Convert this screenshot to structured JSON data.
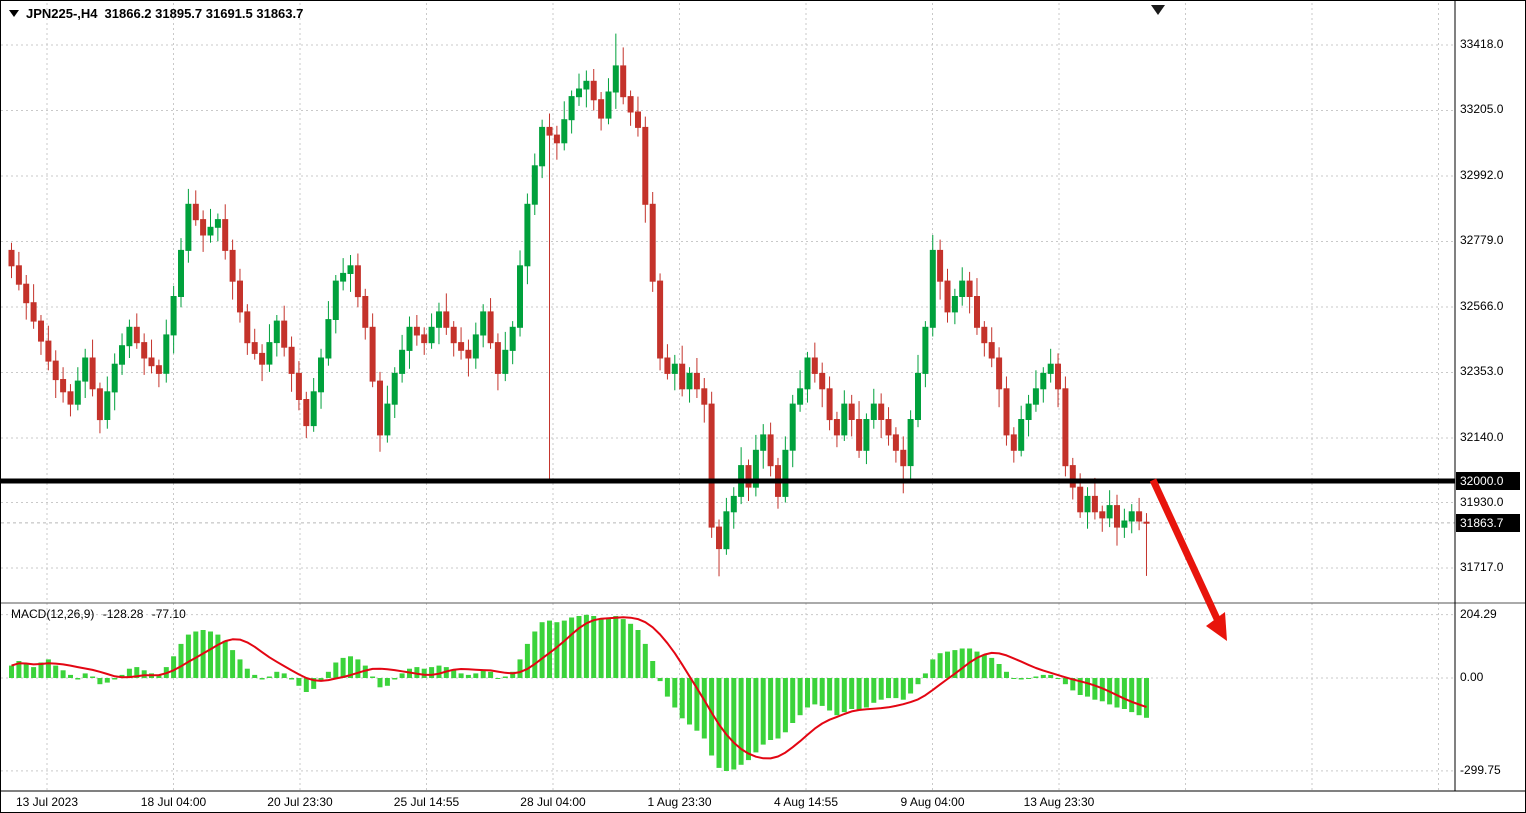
{
  "header": {
    "symbol": "JPN225-,H4",
    "ohlc": "31866.2 31895.7 31691.5 31863.7"
  },
  "price_axis": {
    "labels": [
      "33418.0",
      "33205.0",
      "32992.0",
      "32779.0",
      "32566.0",
      "32353.0",
      "32140.0",
      "31930.0",
      "31717.0"
    ],
    "hline_badge": "32000.0",
    "price_badge": "31863.7"
  },
  "macd_panel": {
    "label": "MACD(12,26,9)",
    "macd_value": "-128.28",
    "signal_value": "-77.10",
    "axis_labels": [
      "204.29",
      "0.00",
      "-299.75"
    ]
  },
  "time_axis": {
    "labels": [
      "13 Jul 2023",
      "18 Jul 04:00",
      "20 Jul 23:30",
      "25 Jul 14:55",
      "28 Jul 04:00",
      "1 Aug 23:30",
      "4 Aug 14:55",
      "9 Aug 04:00",
      "13 Aug 23:30"
    ]
  },
  "colors": {
    "background": "#ffffff",
    "grid": "#c9c9c9",
    "bull": "#00a13c",
    "bear": "#c4332b",
    "macd_histogram": "#3bd33b",
    "macd_signal": "#e30613",
    "support_line": "#000000",
    "arrow": "#e8140c",
    "badge_bg": "#000000",
    "badge_text": "#ffffff",
    "bid_line": "#b8b8b8"
  },
  "chart_data": {
    "type": "candlestick",
    "symbol": "JPN225-",
    "timeframe": "H4",
    "last_bar": {
      "open": 31866.2,
      "high": 31895.7,
      "low": 31691.5,
      "close": 31863.7
    },
    "price_gridlines": [
      33418,
      33205,
      32992,
      32779,
      32566,
      32353,
      32140,
      31930,
      31717
    ],
    "horizontal_line": 32000.0,
    "current_price": 31863.7,
    "macd_axis": [
      204.29,
      0,
      -299.75
    ],
    "macd_current": {
      "macd": -128.28,
      "signal": -77.1
    },
    "candles": [
      [
        32750,
        32775,
        32660,
        32700
      ],
      [
        32700,
        32745,
        32620,
        32640
      ],
      [
        32640,
        32670,
        32525,
        32580
      ],
      [
        32580,
        32640,
        32495,
        32520
      ],
      [
        32520,
        32540,
        32410,
        32455
      ],
      [
        32455,
        32505,
        32360,
        32390
      ],
      [
        32390,
        32425,
        32270,
        32330
      ],
      [
        32330,
        32370,
        32255,
        32290
      ],
      [
        32290,
        32315,
        32210,
        32250
      ],
      [
        32250,
        32370,
        32230,
        32325
      ],
      [
        32325,
        32430,
        32270,
        32400
      ],
      [
        32400,
        32460,
        32275,
        32300
      ],
      [
        32300,
        32320,
        32155,
        32200
      ],
      [
        32200,
        32340,
        32170,
        32290
      ],
      [
        32290,
        32415,
        32230,
        32380
      ],
      [
        32380,
        32480,
        32345,
        32440
      ],
      [
        32440,
        32525,
        32400,
        32500
      ],
      [
        32500,
        32545,
        32430,
        32450
      ],
      [
        32450,
        32480,
        32345,
        32400
      ],
      [
        32400,
        32460,
        32350,
        32375
      ],
      [
        32375,
        32395,
        32305,
        32350
      ],
      [
        32350,
        32525,
        32320,
        32475
      ],
      [
        32475,
        32635,
        32415,
        32600
      ],
      [
        32600,
        32790,
        32565,
        32750
      ],
      [
        32750,
        32950,
        32710,
        32900
      ],
      [
        32900,
        32945,
        32830,
        32850
      ],
      [
        32850,
        32880,
        32745,
        32800
      ],
      [
        32800,
        32885,
        32775,
        32825
      ],
      [
        32825,
        32870,
        32780,
        32850
      ],
      [
        32850,
        32900,
        32720,
        32750
      ],
      [
        32750,
        32785,
        32590,
        32650
      ],
      [
        32650,
        32690,
        32515,
        32550
      ],
      [
        32550,
        32575,
        32410,
        32450
      ],
      [
        32450,
        32495,
        32395,
        32415
      ],
      [
        32415,
        32445,
        32325,
        32380
      ],
      [
        32380,
        32510,
        32355,
        32450
      ],
      [
        32450,
        32540,
        32405,
        32520
      ],
      [
        32520,
        32570,
        32405,
        32435
      ],
      [
        32435,
        32470,
        32290,
        32350
      ],
      [
        32350,
        32390,
        32230,
        32265
      ],
      [
        32265,
        32290,
        32140,
        32180
      ],
      [
        32180,
        32335,
        32160,
        32290
      ],
      [
        32290,
        32430,
        32235,
        32400
      ],
      [
        32400,
        32585,
        32375,
        32525
      ],
      [
        32525,
        32670,
        32480,
        32650
      ],
      [
        32650,
        32725,
        32620,
        32675
      ],
      [
        32675,
        32735,
        32615,
        32700
      ],
      [
        32700,
        32740,
        32565,
        32600
      ],
      [
        32600,
        32625,
        32460,
        32500
      ],
      [
        32500,
        32545,
        32305,
        32325
      ],
      [
        32325,
        32355,
        32095,
        32150
      ],
      [
        32150,
        32310,
        32125,
        32250
      ],
      [
        32250,
        32370,
        32205,
        32350
      ],
      [
        32350,
        32475,
        32320,
        32425
      ],
      [
        32425,
        32535,
        32365,
        32500
      ],
      [
        32500,
        32540,
        32440,
        32475
      ],
      [
        32475,
        32500,
        32410,
        32450
      ],
      [
        32450,
        32545,
        32430,
        32500
      ],
      [
        32500,
        32580,
        32445,
        32550
      ],
      [
        32550,
        32610,
        32475,
        32500
      ],
      [
        32500,
        32520,
        32405,
        32450
      ],
      [
        32450,
        32500,
        32395,
        32425
      ],
      [
        32425,
        32460,
        32340,
        32400
      ],
      [
        32400,
        32515,
        32365,
        32475
      ],
      [
        32475,
        32575,
        32435,
        32550
      ],
      [
        32550,
        32595,
        32430,
        32450
      ],
      [
        32450,
        32480,
        32295,
        32350
      ],
      [
        32350,
        32485,
        32325,
        32425
      ],
      [
        32425,
        32520,
        32380,
        32500
      ],
      [
        32500,
        32750,
        32470,
        32700
      ],
      [
        32700,
        32935,
        32640,
        32900
      ],
      [
        32900,
        33065,
        32865,
        33025
      ],
      [
        33025,
        33175,
        32985,
        33150
      ],
      [
        33150,
        33195,
        32005,
        33125
      ],
      [
        33125,
        33155,
        33045,
        33100
      ],
      [
        33100,
        33235,
        33075,
        33175
      ],
      [
        33175,
        33270,
        33130,
        33250
      ],
      [
        33250,
        33325,
        33220,
        33275
      ],
      [
        33275,
        33335,
        33215,
        33300
      ],
      [
        33300,
        33340,
        33205,
        33240
      ],
      [
        33240,
        33265,
        33140,
        33180
      ],
      [
        33180,
        33310,
        33160,
        33265
      ],
      [
        33265,
        33455,
        33210,
        33350
      ],
      [
        33350,
        33410,
        33225,
        33250
      ],
      [
        33250,
        33270,
        33155,
        33200
      ],
      [
        33200,
        33250,
        33120,
        33150
      ],
      [
        33150,
        33185,
        32840,
        32900
      ],
      [
        32900,
        32940,
        32615,
        32650
      ],
      [
        32650,
        32675,
        32360,
        32400
      ],
      [
        32400,
        32445,
        32330,
        32350
      ],
      [
        32350,
        32410,
        32295,
        32380
      ],
      [
        32380,
        32440,
        32275,
        32300
      ],
      [
        32300,
        32370,
        32255,
        32350
      ],
      [
        32350,
        32400,
        32270,
        32300
      ],
      [
        32300,
        32335,
        32190,
        32250
      ],
      [
        32250,
        32290,
        31815,
        31850
      ],
      [
        31850,
        31875,
        31690,
        31780
      ],
      [
        31780,
        31945,
        31760,
        31900
      ],
      [
        31900,
        31980,
        31845,
        31950
      ],
      [
        31950,
        32110,
        31925,
        32050
      ],
      [
        32050,
        32070,
        31935,
        31980
      ],
      [
        31980,
        32150,
        31950,
        32100
      ],
      [
        32100,
        32185,
        32040,
        32150
      ],
      [
        32150,
        32190,
        32015,
        32050
      ],
      [
        32050,
        32075,
        31910,
        31950
      ],
      [
        31950,
        32145,
        31930,
        32100
      ],
      [
        32100,
        32280,
        32045,
        32250
      ],
      [
        32250,
        32360,
        32225,
        32300
      ],
      [
        32300,
        32420,
        32255,
        32400
      ],
      [
        32400,
        32450,
        32320,
        32350
      ],
      [
        32350,
        32385,
        32240,
        32300
      ],
      [
        32300,
        32340,
        32165,
        32200
      ],
      [
        32200,
        32225,
        32110,
        32150
      ],
      [
        32150,
        32295,
        32130,
        32250
      ],
      [
        32250,
        32280,
        32145,
        32200
      ],
      [
        32200,
        32260,
        32075,
        32100
      ],
      [
        32100,
        32220,
        32055,
        32200
      ],
      [
        32200,
        32300,
        32170,
        32250
      ],
      [
        32250,
        32285,
        32140,
        32200
      ],
      [
        32200,
        32240,
        32115,
        32150
      ],
      [
        32150,
        32175,
        32060,
        32100
      ],
      [
        32100,
        32145,
        31960,
        32050
      ],
      [
        32050,
        32230,
        31995,
        32200
      ],
      [
        32200,
        32410,
        32175,
        32350
      ],
      [
        32350,
        32520,
        32305,
        32500
      ],
      [
        32500,
        32800,
        32470,
        32750
      ],
      [
        32750,
        32785,
        32590,
        32650
      ],
      [
        32650,
        32690,
        32515,
        32550
      ],
      [
        32550,
        32625,
        32510,
        32600
      ],
      [
        32600,
        32695,
        32570,
        32650
      ],
      [
        32650,
        32680,
        32545,
        32600
      ],
      [
        32600,
        32660,
        32475,
        32500
      ],
      [
        32500,
        32520,
        32405,
        32450
      ],
      [
        32450,
        32500,
        32370,
        32400
      ],
      [
        32400,
        32435,
        32240,
        32300
      ],
      [
        32300,
        32340,
        32115,
        32150
      ],
      [
        32150,
        32175,
        32060,
        32100
      ],
      [
        32100,
        32245,
        32080,
        32200
      ],
      [
        32200,
        32280,
        32145,
        32250
      ],
      [
        32250,
        32360,
        32225,
        32300
      ],
      [
        32300,
        32370,
        32255,
        32350
      ],
      [
        32350,
        32430,
        32320,
        32380
      ],
      [
        32380,
        32415,
        32240,
        32300
      ],
      [
        32300,
        32340,
        32015,
        32050
      ],
      [
        32050,
        32075,
        31940,
        31980
      ],
      [
        31980,
        32025,
        31880,
        31900
      ],
      [
        31900,
        31980,
        31845,
        31950
      ],
      [
        31950,
        32010,
        31875,
        31900
      ],
      [
        31900,
        31920,
        31835,
        31880
      ],
      [
        31880,
        31970,
        31850,
        31920
      ],
      [
        31920,
        31955,
        31790,
        31850
      ],
      [
        31850,
        31910,
        31815,
        31870
      ],
      [
        31870,
        31925,
        31830,
        31900
      ],
      [
        31900,
        31945,
        31840,
        31870
      ],
      [
        31866.2,
        31895.7,
        31691.5,
        31863.7
      ]
    ],
    "macd_histogram": [
      40,
      55,
      45,
      35,
      50,
      60,
      40,
      25,
      10,
      -5,
      15,
      5,
      -20,
      -15,
      -5,
      10,
      30,
      35,
      25,
      15,
      10,
      35,
      70,
      110,
      140,
      150,
      155,
      150,
      140,
      120,
      90,
      60,
      30,
      10,
      -5,
      5,
      20,
      15,
      -5,
      -25,
      -45,
      -35,
      -10,
      20,
      50,
      65,
      70,
      60,
      40,
      5,
      -30,
      -25,
      -5,
      15,
      30,
      35,
      30,
      35,
      40,
      35,
      25,
      15,
      10,
      15,
      25,
      20,
      0,
      5,
      20,
      60,
      110,
      150,
      180,
      185,
      180,
      185,
      195,
      200,
      204,
      200,
      192,
      195,
      200,
      190,
      175,
      155,
      110,
      55,
      -10,
      -60,
      -95,
      -130,
      -150,
      -170,
      -195,
      -250,
      -290,
      -300,
      -295,
      -280,
      -265,
      -240,
      -215,
      -200,
      -195,
      -175,
      -145,
      -120,
      -95,
      -85,
      -90,
      -105,
      -120,
      -110,
      -100,
      -105,
      -95,
      -80,
      -70,
      -65,
      -65,
      -70,
      -50,
      -20,
      15,
      60,
      80,
      85,
      90,
      95,
      95,
      85,
      75,
      65,
      45,
      20,
      0,
      -5,
      0,
      5,
      10,
      10,
      0,
      -20,
      -40,
      -55,
      -60,
      -70,
      -75,
      -85,
      -95,
      -100,
      -110,
      -120,
      -128.28
    ]
  }
}
